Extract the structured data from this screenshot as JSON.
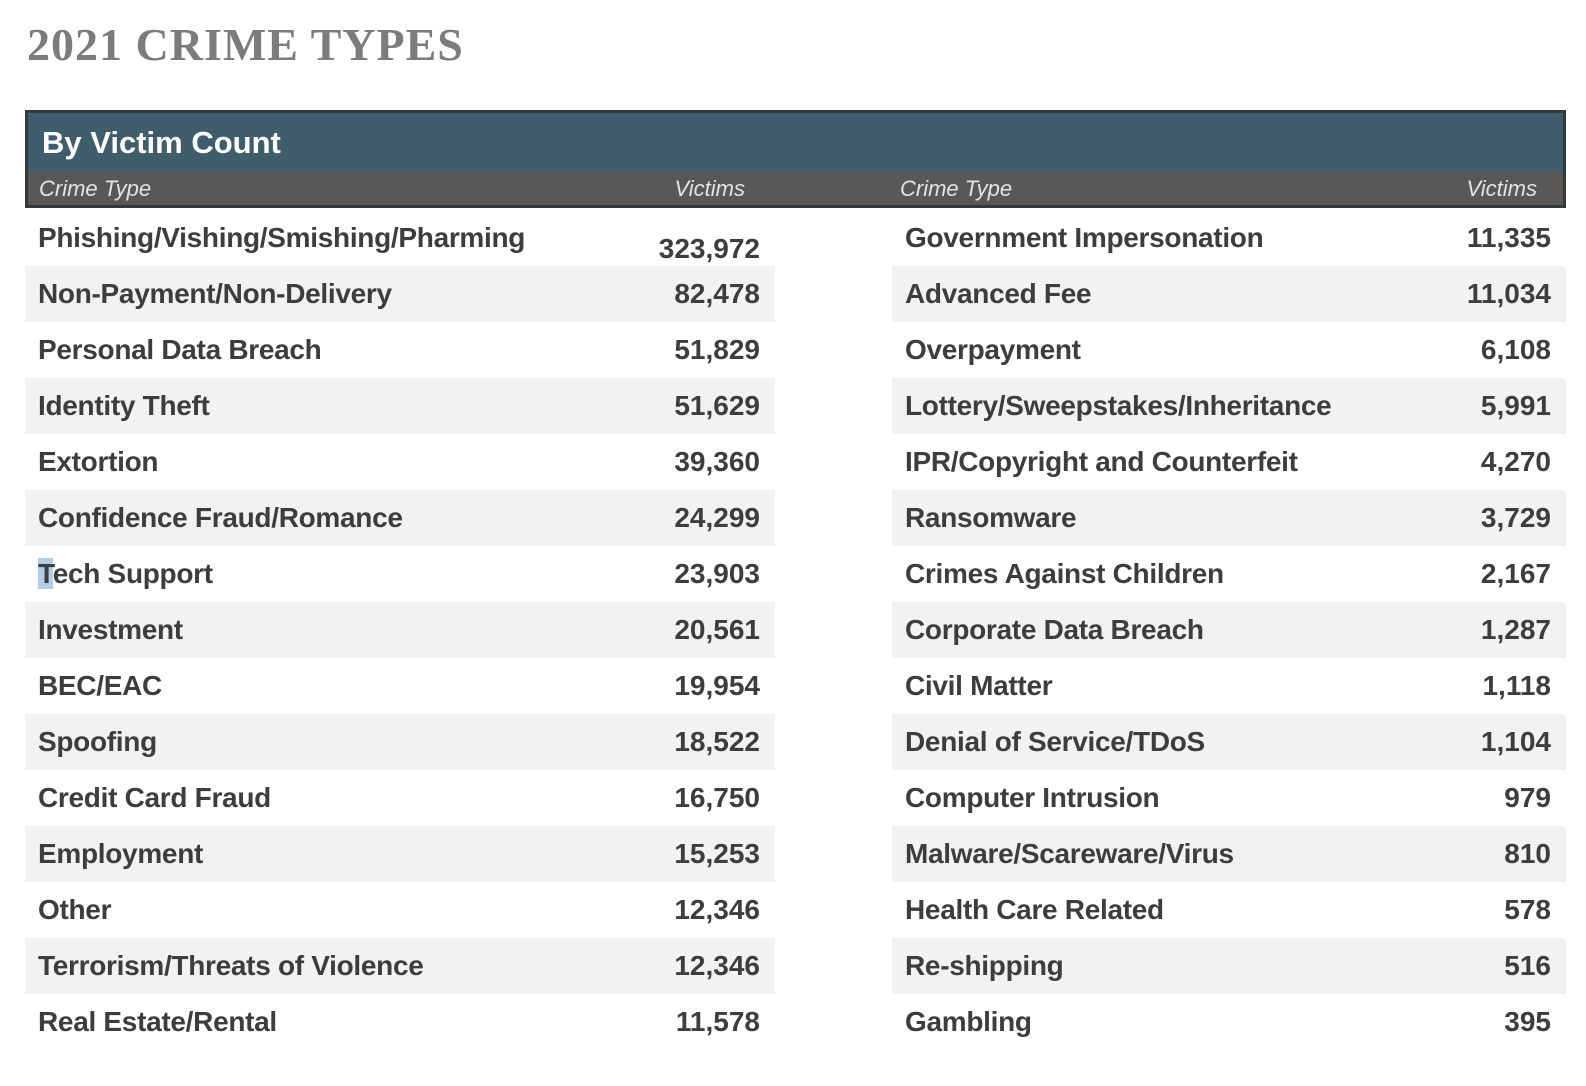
{
  "title": "2021 CRIME TYPES",
  "table": {
    "header": "By Victim Count",
    "column_headers": {
      "crime_type": "Crime Type",
      "victims": "Victims"
    },
    "left_rows": [
      {
        "type": "Phishing/Vishing/Smishing/Pharming",
        "victims": "323,972",
        "value_low": true
      },
      {
        "type": "Non-Payment/Non-Delivery",
        "victims": "82,478"
      },
      {
        "type": "Personal Data Breach",
        "victims": "51,829"
      },
      {
        "type": "Identity Theft",
        "victims": "51,629"
      },
      {
        "type": "Extortion",
        "victims": "39,360"
      },
      {
        "type": "Confidence Fraud/Romance",
        "victims": "24,299"
      },
      {
        "type": "Tech Support",
        "victims": "23,903",
        "highlight_first_char": true
      },
      {
        "type": "Investment",
        "victims": "20,561"
      },
      {
        "type": "BEC/EAC",
        "victims": "19,954"
      },
      {
        "type": "Spoofing",
        "victims": "18,522"
      },
      {
        "type": "Credit Card Fraud",
        "victims": "16,750"
      },
      {
        "type": "Employment",
        "victims": "15,253"
      },
      {
        "type": "Other",
        "victims": "12,346"
      },
      {
        "type": "Terrorism/Threats of Violence",
        "victims": "12,346"
      },
      {
        "type": "Real Estate/Rental",
        "victims": "11,578"
      }
    ],
    "right_rows": [
      {
        "type": "Government Impersonation",
        "victims": "11,335"
      },
      {
        "type": "Advanced Fee",
        "victims": "11,034"
      },
      {
        "type": "Overpayment",
        "victims": "6,108"
      },
      {
        "type": "Lottery/Sweepstakes/Inheritance",
        "victims": "5,991"
      },
      {
        "type": "IPR/Copyright and Counterfeit",
        "victims": "4,270"
      },
      {
        "type": "Ransomware",
        "victims": "3,729"
      },
      {
        "type": "Crimes Against Children",
        "victims": "2,167"
      },
      {
        "type": "Corporate Data Breach",
        "victims": "1,287"
      },
      {
        "type": "Civil Matter",
        "victims": "1,118"
      },
      {
        "type": "Denial of Service/TDoS",
        "victims": "1,104"
      },
      {
        "type": "Computer Intrusion",
        "victims": "979"
      },
      {
        "type": "Malware/Scareware/Virus",
        "victims": "810"
      },
      {
        "type": "Health Care Related",
        "victims": "578"
      },
      {
        "type": "Re-shipping",
        "victims": "516"
      },
      {
        "type": "Gambling",
        "victims": "395"
      }
    ]
  },
  "colors": {
    "header_teal": "#3f5d6b",
    "subheader_gray": "#5a5857",
    "row_stripe": "#f2f2f2",
    "body_text": "#3d3d3d",
    "title_gray": "#7c7c7c",
    "header_text": "#ffffff",
    "selection_highlight": "#b3cde8"
  },
  "chart_data": {
    "type": "table",
    "title": "2021 CRIME TYPES",
    "subtitle": "By Victim Count",
    "columns": [
      "Crime Type",
      "Victims"
    ],
    "rows": [
      [
        "Phishing/Vishing/Smishing/Pharming",
        323972
      ],
      [
        "Non-Payment/Non-Delivery",
        82478
      ],
      [
        "Personal Data Breach",
        51829
      ],
      [
        "Identity Theft",
        51629
      ],
      [
        "Extortion",
        39360
      ],
      [
        "Confidence Fraud/Romance",
        24299
      ],
      [
        "Tech Support",
        23903
      ],
      [
        "Investment",
        20561
      ],
      [
        "BEC/EAC",
        19954
      ],
      [
        "Spoofing",
        18522
      ],
      [
        "Credit Card Fraud",
        16750
      ],
      [
        "Employment",
        15253
      ],
      [
        "Other",
        12346
      ],
      [
        "Terrorism/Threats of Violence",
        12346
      ],
      [
        "Real Estate/Rental",
        11578
      ],
      [
        "Government Impersonation",
        11335
      ],
      [
        "Advanced Fee",
        11034
      ],
      [
        "Overpayment",
        6108
      ],
      [
        "Lottery/Sweepstakes/Inheritance",
        5991
      ],
      [
        "IPR/Copyright and Counterfeit",
        4270
      ],
      [
        "Ransomware",
        3729
      ],
      [
        "Crimes Against Children",
        2167
      ],
      [
        "Corporate Data Breach",
        1287
      ],
      [
        "Civil Matter",
        1118
      ],
      [
        "Denial of Service/TDoS",
        1104
      ],
      [
        "Computer Intrusion",
        979
      ],
      [
        "Malware/Scareware/Virus",
        810
      ],
      [
        "Health Care Related",
        578
      ],
      [
        "Re-shipping",
        516
      ],
      [
        "Gambling",
        395
      ]
    ]
  }
}
